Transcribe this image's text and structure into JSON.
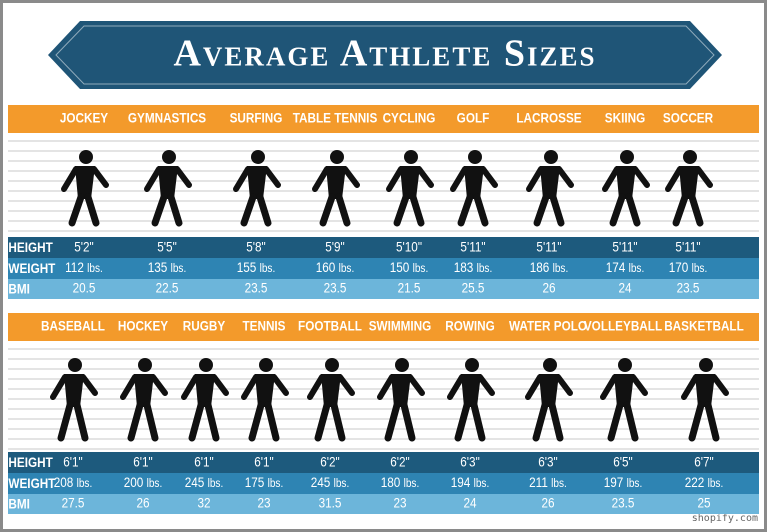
{
  "title": "Average Athlete Sizes",
  "row_labels": [
    "HEIGHT",
    "WEIGHT",
    "BMI"
  ],
  "weight_unit": "lbs.",
  "sections": [
    {
      "sports": [
        {
          "name": "JOCKEY",
          "height": "5'2\"",
          "weight": 112,
          "bmi": 20.5
        },
        {
          "name": "GYMNASTICS",
          "height": "5'5\"",
          "weight": 135,
          "bmi": 22.5
        },
        {
          "name": "SURFING",
          "height": "5'8\"",
          "weight": 155,
          "bmi": 23.5
        },
        {
          "name": "TABLE TENNIS",
          "height": "5'9\"",
          "weight": 160,
          "bmi": 23.5
        },
        {
          "name": "CYCLING",
          "height": "5'10\"",
          "weight": 150,
          "bmi": 21.5
        },
        {
          "name": "GOLF",
          "height": "5'11\"",
          "weight": 183,
          "bmi": 25.5
        },
        {
          "name": "LACROSSE",
          "height": "5'11\"",
          "weight": 186,
          "bmi": 26
        },
        {
          "name": "SKIING",
          "height": "5'11\"",
          "weight": 174,
          "bmi": 24
        },
        {
          "name": "SOCCER",
          "height": "5'11\"",
          "weight": 170,
          "bmi": 23.5
        }
      ]
    },
    {
      "sports": [
        {
          "name": "BASEBALL",
          "height": "6'1\"",
          "weight": 208,
          "bmi": 27.5
        },
        {
          "name": "HOCKEY",
          "height": "6'1\"",
          "weight": 200,
          "bmi": 26
        },
        {
          "name": "RUGBY",
          "height": "6'1\"",
          "weight": 245,
          "bmi": 32
        },
        {
          "name": "TENNIS",
          "height": "6'1\"",
          "weight": 175,
          "bmi": 23
        },
        {
          "name": "FOOTBALL",
          "height": "6'2\"",
          "weight": 245,
          "bmi": 31.5
        },
        {
          "name": "SWIMMING",
          "height": "6'2\"",
          "weight": 180,
          "bmi": 23
        },
        {
          "name": "ROWING",
          "height": "6'3\"",
          "weight": 194,
          "bmi": 24
        },
        {
          "name": "WATER POLO",
          "height": "6'3\"",
          "weight": 211,
          "bmi": 26
        },
        {
          "name": "VOLLEYBALL",
          "height": "6'5\"",
          "weight": 197,
          "bmi": 23.5
        },
        {
          "name": "BASKETBALL",
          "height": "6'7\"",
          "weight": 222,
          "bmi": 25
        }
      ]
    }
  ],
  "watermark": "shopify.com"
}
